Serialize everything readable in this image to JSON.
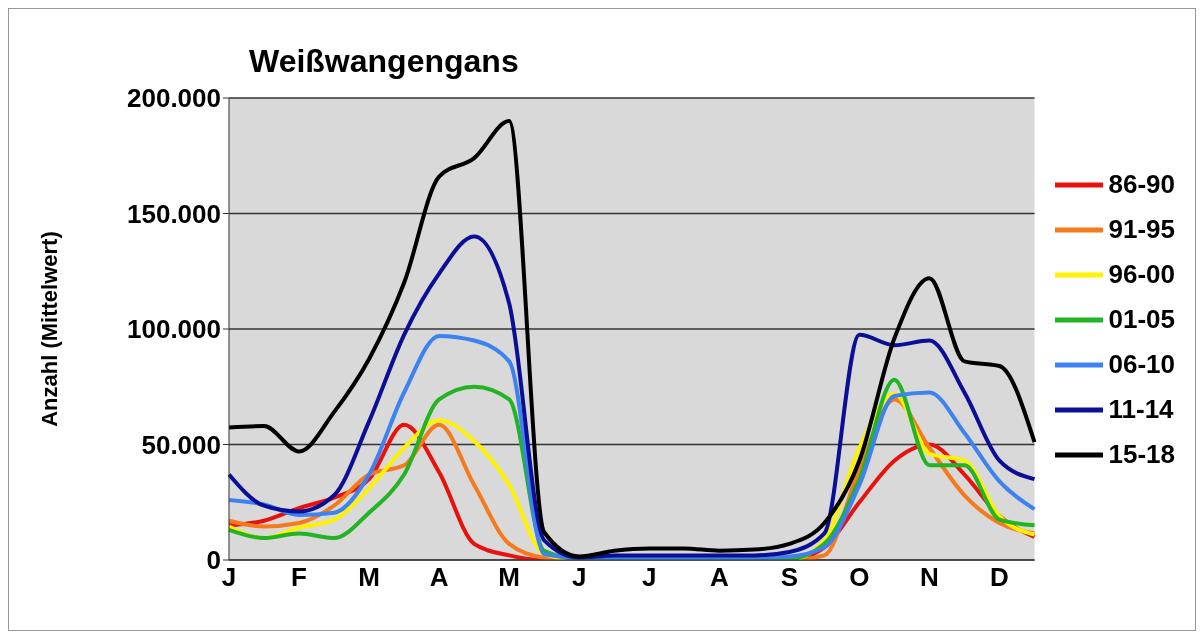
{
  "chart_data": {
    "type": "line",
    "title": "Weißwangengans",
    "ylabel": "Anzahl (Mittelwert)",
    "categories": [
      "J",
      null,
      "F",
      null,
      "M",
      null,
      "A",
      null,
      "M",
      null,
      "J",
      null,
      "J",
      null,
      "A",
      null,
      "S",
      null,
      "O",
      null,
      "N",
      null,
      "D",
      null
    ],
    "ylim": [
      0,
      200000
    ],
    "yticks": [
      {
        "value": 0,
        "label": "0"
      },
      {
        "value": 50000,
        "label": "50.000"
      },
      {
        "value": 100000,
        "label": "100.000"
      },
      {
        "value": 150000,
        "label": "150.000"
      },
      {
        "value": 200000,
        "label": "200.000"
      }
    ],
    "grid": "y",
    "legend": "right",
    "marker": "none",
    "line_style": "solid",
    "series": [
      {
        "name": "86-90",
        "color": "#e8120c",
        "values": [
          15000,
          17000,
          22500,
          27000,
          35000,
          58500,
          38000,
          7000,
          2000,
          0,
          0,
          0,
          0,
          0,
          0,
          0,
          0,
          5500,
          25000,
          43000,
          50000,
          37000,
          19000,
          10000
        ]
      },
      {
        "name": "91-95",
        "color": "#f57a1c",
        "values": [
          17000,
          14500,
          16000,
          23500,
          37000,
          41000,
          58500,
          32500,
          7000,
          1000,
          0,
          0,
          0,
          0,
          0,
          0,
          0,
          2000,
          39500,
          69500,
          48500,
          28000,
          16000,
          11500
        ]
      },
      {
        "name": "96-00",
        "color": "#fff200",
        "values": [
          14500,
          9500,
          14000,
          17500,
          31000,
          48500,
          60500,
          51500,
          32500,
          2500,
          0,
          0,
          0,
          0,
          0,
          0,
          0,
          8500,
          48500,
          72000,
          46000,
          43000,
          19000,
          11000
        ]
      },
      {
        "name": "01-05",
        "color": "#22b422",
        "values": [
          13000,
          9500,
          11500,
          9500,
          20500,
          37000,
          69500,
          75000,
          69500,
          4000,
          500,
          500,
          500,
          500,
          500,
          500,
          500,
          7000,
          35000,
          78000,
          41000,
          41000,
          17500,
          15000
        ]
      },
      {
        "name": "06-10",
        "color": "#3d82f0",
        "values": [
          26000,
          24000,
          19500,
          20500,
          37000,
          72500,
          97000,
          95000,
          86000,
          2500,
          1000,
          1000,
          1000,
          1000,
          1000,
          1000,
          1500,
          5500,
          32500,
          71000,
          72500,
          55000,
          34000,
          22000
        ]
      },
      {
        "name": "11-14",
        "color": "#0a0f96",
        "values": [
          37000,
          23500,
          21000,
          28000,
          60000,
          97500,
          124000,
          140000,
          111000,
          8500,
          1000,
          2000,
          2000,
          2000,
          2000,
          2000,
          3500,
          11500,
          97500,
          93000,
          95000,
          72500,
          43000,
          35000
        ]
      },
      {
        "name": "15-18",
        "color": "#000000",
        "values": [
          57400,
          58000,
          47000,
          64000,
          87000,
          120000,
          166000,
          174000,
          190000,
          12000,
          1500,
          4000,
          5000,
          5000,
          4000,
          4500,
          7000,
          16000,
          43000,
          96000,
          122000,
          86000,
          84000,
          51000
        ]
      }
    ]
  }
}
